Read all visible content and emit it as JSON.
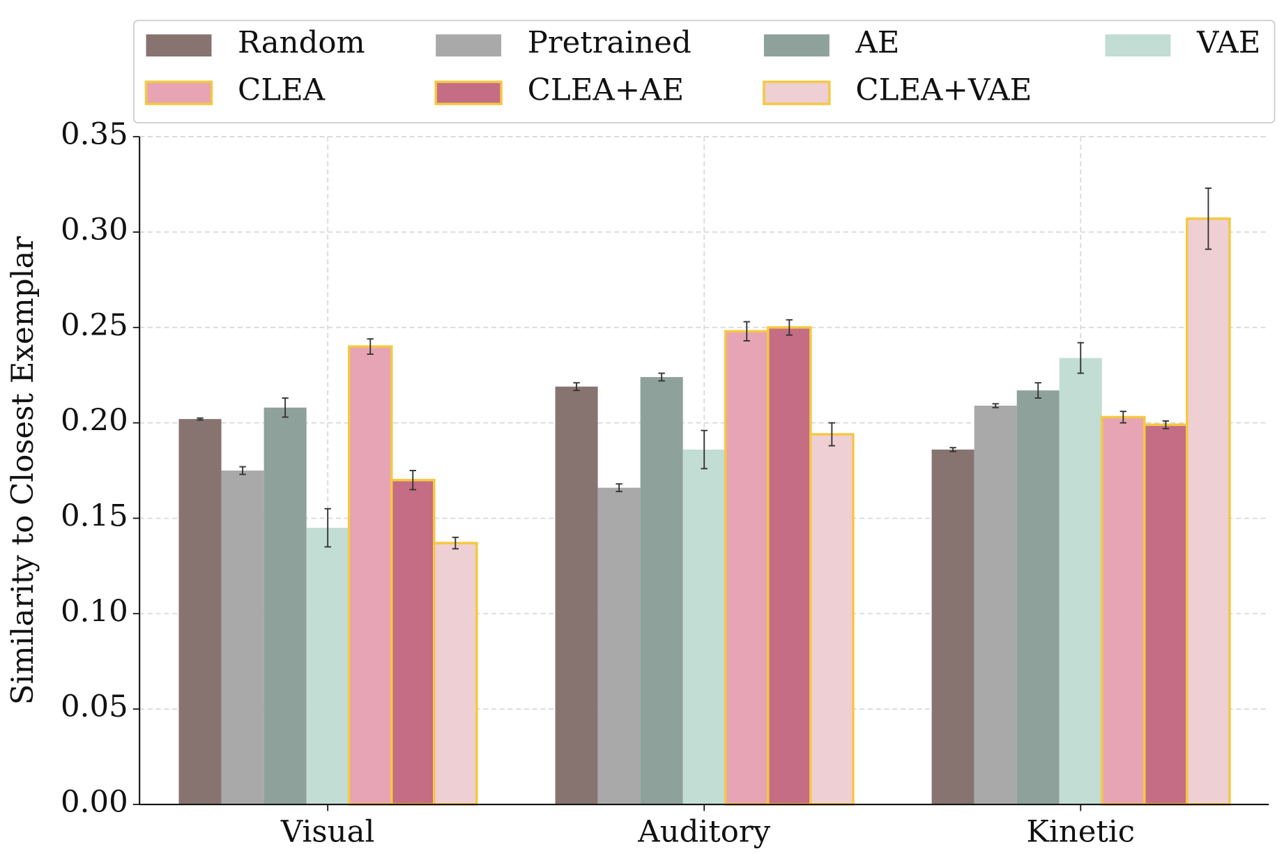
{
  "chart_data": {
    "type": "bar",
    "ylabel": "Similarity to Closest Exemplar",
    "categories": [
      "Visual",
      "Auditory",
      "Kinetic"
    ],
    "series": [
      {
        "name": "Random",
        "color": "#87736f",
        "values": [
          0.202,
          0.219,
          0.186
        ],
        "errors": [
          0.0005,
          0.002,
          0.001
        ]
      },
      {
        "name": "Pretrained",
        "color": "#a9a9a9",
        "values": [
          0.175,
          0.166,
          0.209
        ],
        "errors": [
          0.002,
          0.002,
          0.001
        ]
      },
      {
        "name": "AE",
        "color": "#8fa19b",
        "values": [
          0.208,
          0.224,
          0.217
        ],
        "errors": [
          0.005,
          0.002,
          0.004
        ]
      },
      {
        "name": "VAE",
        "color": "#c2ddd3",
        "values": [
          0.145,
          0.186,
          0.234
        ],
        "errors": [
          0.01,
          0.01,
          0.008
        ]
      },
      {
        "name": "CLEA",
        "color": "#e6a4b4",
        "edgecolor": "#f5c842",
        "values": [
          0.24,
          0.248,
          0.203
        ],
        "errors": [
          0.004,
          0.005,
          0.003
        ]
      },
      {
        "name": "CLEA+AE",
        "color": "#c46d85",
        "edgecolor": "#f5c842",
        "values": [
          0.17,
          0.25,
          0.199
        ],
        "errors": [
          0.005,
          0.004,
          0.002
        ]
      },
      {
        "name": "CLEA+VAE",
        "color": "#eecfd4",
        "edgecolor": "#f5c842",
        "values": [
          0.137,
          0.194,
          0.307
        ],
        "errors": [
          0.003,
          0.006,
          0.016
        ]
      }
    ],
    "ylim": [
      0,
      0.35
    ],
    "yticks": [
      {
        "value": 0,
        "label": "0.00"
      },
      {
        "value": 0.05,
        "label": "0.05"
      },
      {
        "value": 0.1,
        "label": "0.10"
      },
      {
        "value": 0.15,
        "label": "0.15"
      },
      {
        "value": 0.2,
        "label": "0.20"
      },
      {
        "value": 0.25,
        "label": "0.25"
      },
      {
        "value": 0.3,
        "label": "0.30"
      },
      {
        "value": 0.35,
        "label": "0.35"
      }
    ],
    "grid": true,
    "legend": "top"
  }
}
